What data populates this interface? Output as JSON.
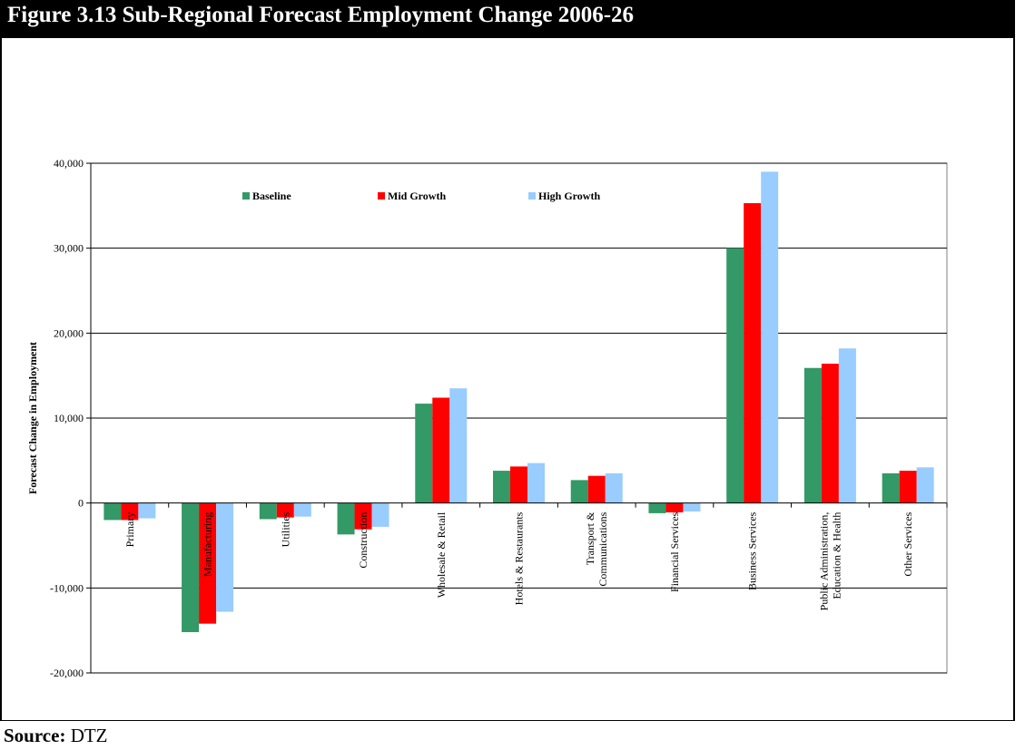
{
  "header": {
    "title": "Figure 3.13 Sub-Regional Forecast Employment Change 2006-26"
  },
  "source": {
    "label": "Source:",
    "text": "DTZ"
  },
  "chart_data": {
    "type": "bar",
    "title": "",
    "xlabel": "",
    "ylabel": "Forecast Change in Employment",
    "ylim": [
      -20000,
      40000
    ],
    "yticks": [
      -20000,
      -10000,
      0,
      10000,
      20000,
      30000,
      40000
    ],
    "ytick_labels": [
      "-20,000",
      "-10,000",
      "0",
      "10,000",
      "20,000",
      "30,000",
      "40,000"
    ],
    "grid": true,
    "legend": "top",
    "categories": [
      [
        "Primary"
      ],
      [
        "Manufacturing"
      ],
      [
        "Utilities"
      ],
      [
        "Construction"
      ],
      [
        "Wholesale & Retail"
      ],
      [
        "Hotels & Restaurants"
      ],
      [
        "Transport &",
        "Communications"
      ],
      [
        "Financial Services"
      ],
      [
        "Business Services"
      ],
      [
        "Public Administration,",
        "Education & Health"
      ],
      [
        "Other Services"
      ]
    ],
    "series": [
      {
        "name": "Baseline",
        "color": "#339966",
        "values": [
          -2000,
          -15200,
          -1900,
          -3700,
          11700,
          3800,
          2700,
          -1200,
          30000,
          15900,
          3500
        ]
      },
      {
        "name": "Mid Growth",
        "color": "#ff0000",
        "values": [
          -2000,
          -14200,
          -1700,
          -3100,
          12400,
          4300,
          3200,
          -1100,
          35300,
          16400,
          3800
        ]
      },
      {
        "name": "High Growth",
        "color": "#99ccff",
        "values": [
          -1800,
          -12800,
          -1600,
          -2800,
          13500,
          4700,
          3500,
          -1000,
          39000,
          18200,
          4200
        ]
      }
    ]
  }
}
